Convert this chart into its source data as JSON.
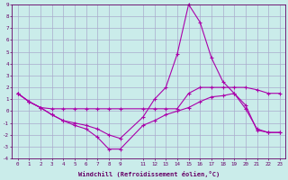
{
  "xlabel": "Windchill (Refroidissement éolien,°C)",
  "bg_color": "#caecea",
  "grid_color": "#aaaacc",
  "line_color": "#aa00aa",
  "xlim": [
    -0.5,
    23.5
  ],
  "ylim": [
    -4,
    9
  ],
  "line1_x": [
    0,
    1,
    2,
    3,
    4,
    5,
    6,
    7,
    8,
    9,
    11,
    12,
    13,
    14,
    15,
    16,
    17,
    18,
    19,
    20,
    21,
    22,
    23
  ],
  "line1_y": [
    1.5,
    0.8,
    0.3,
    0.2,
    0.2,
    0.2,
    0.2,
    0.2,
    0.2,
    0.2,
    0.2,
    0.2,
    0.2,
    0.2,
    1.5,
    2.0,
    2.0,
    2.0,
    2.0,
    2.0,
    1.8,
    1.5,
    1.5
  ],
  "line2_x": [
    0,
    1,
    2,
    3,
    4,
    5,
    6,
    7,
    8,
    9,
    11,
    12,
    13,
    14,
    15,
    16,
    17,
    18,
    19,
    20,
    21,
    22,
    23
  ],
  "line2_y": [
    1.5,
    0.8,
    0.3,
    -0.3,
    -0.8,
    -1.0,
    -1.2,
    -1.5,
    -2.0,
    -2.3,
    -0.5,
    1.0,
    2.0,
    4.8,
    9.0,
    7.5,
    4.5,
    2.5,
    1.5,
    0.2,
    -1.5,
    -1.8,
    -1.8
  ],
  "line3_x": [
    0,
    1,
    2,
    3,
    4,
    5,
    6,
    7,
    8,
    9,
    11,
    12,
    13,
    14,
    15,
    16,
    17,
    18,
    19,
    20,
    21,
    22,
    23
  ],
  "line3_y": [
    1.5,
    0.8,
    0.3,
    -0.3,
    -0.8,
    -1.2,
    -1.5,
    -2.2,
    -3.2,
    -3.2,
    -1.2,
    -0.8,
    -0.3,
    0.0,
    0.3,
    0.8,
    1.2,
    1.3,
    1.5,
    0.5,
    -1.6,
    -1.8,
    -1.8
  ],
  "xtick_positions": [
    0,
    1,
    2,
    3,
    4,
    5,
    6,
    7,
    8,
    9,
    11,
    12,
    13,
    14,
    15,
    16,
    17,
    18,
    19,
    20,
    21,
    22,
    23
  ],
  "xtick_labels": [
    "0",
    "1",
    "2",
    "3",
    "4",
    "5",
    "6",
    "7",
    "8",
    "9",
    "11",
    "12",
    "13",
    "14",
    "15",
    "16",
    "17",
    "18",
    "19",
    "20",
    "21",
    "22",
    "23"
  ],
  "ytick_positions": [
    -4,
    -3,
    -2,
    -1,
    0,
    1,
    2,
    3,
    4,
    5,
    6,
    7,
    8,
    9
  ],
  "figsize": [
    3.2,
    2.0
  ],
  "dpi": 100
}
